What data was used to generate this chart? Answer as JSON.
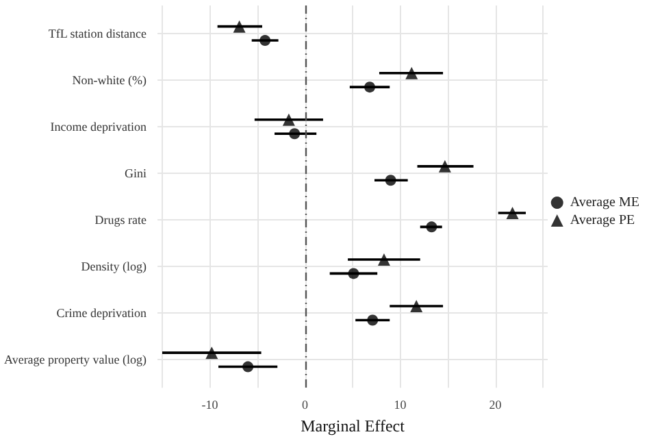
{
  "chart_data": {
    "type": "scatter",
    "orientation": "horizontal",
    "xlabel": "Marginal Effect",
    "categories": [
      "TfL station distance",
      "Non-white (%)",
      "Income deprivation",
      "Gini",
      "Drugs rate",
      "Density (log)",
      "Crime deprivation",
      "Average property value (log)"
    ],
    "series": [
      {
        "name": "Average ME",
        "color": "#000000",
        "marker": "circle",
        "values": [
          -4.2,
          6.8,
          -1.1,
          9.0,
          13.3,
          5.1,
          7.1,
          -6.0
        ],
        "errors": [
          [
            -5.6,
            -2.8
          ],
          [
            4.7,
            8.9
          ],
          [
            -3.2,
            1.2
          ],
          [
            7.3,
            10.8
          ],
          [
            12.1,
            14.4
          ],
          [
            2.6,
            7.6
          ],
          [
            5.3,
            8.9
          ],
          [
            -9.1,
            -2.9
          ]
        ]
      },
      {
        "name": "Average PE",
        "color": "#000000",
        "marker": "triangle",
        "values": [
          -6.9,
          11.2,
          -1.7,
          14.7,
          21.8,
          8.3,
          11.7,
          -9.8
        ],
        "errors": [
          [
            -9.2,
            -4.5
          ],
          [
            7.8,
            14.5
          ],
          [
            -5.3,
            1.9
          ],
          [
            11.8,
            17.7
          ],
          [
            20.3,
            23.2
          ],
          [
            4.5,
            12.1
          ],
          [
            8.9,
            14.5
          ],
          [
            -15.0,
            -4.6
          ]
        ]
      }
    ],
    "xlim": [
      -15.5,
      25.5
    ],
    "xticks": [
      {
        "value": -15,
        "label": null
      },
      -10,
      {
        "value": -5,
        "label": null
      },
      0,
      {
        "value": 5,
        "label": null
      },
      10,
      {
        "value": 15,
        "label": null
      },
      20,
      {
        "value": 25,
        "label": null
      }
    ],
    "ref_lines": [
      {
        "axis": "x",
        "value": 0,
        "color": "#555555",
        "line_style": "dashed"
      }
    ],
    "grid": true,
    "legend": "right"
  }
}
